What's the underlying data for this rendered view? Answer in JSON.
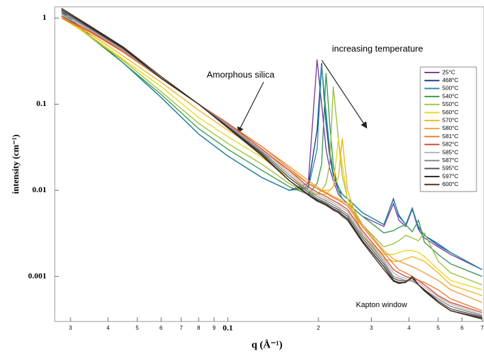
{
  "chart_data": {
    "type": "line",
    "y_label": "intensity (cm⁻¹)",
    "x_label": "q (Å⁻¹)",
    "annotations": [
      "increasing temperature",
      "Amorphous silica",
      "Kapton window"
    ],
    "log_x": true,
    "log_y": true,
    "xlim": [
      0.0266,
      0.71
    ],
    "ylim": [
      0.0003,
      1.35
    ],
    "xticks": [
      {
        "value": 0.03,
        "label": "3"
      },
      {
        "value": 0.04,
        "label": "4"
      },
      {
        "value": 0.05,
        "label": "5"
      },
      {
        "value": 0.06,
        "label": "6"
      },
      {
        "value": 0.07,
        "label": "7"
      },
      {
        "value": 0.08,
        "label": "8"
      },
      {
        "value": 0.09,
        "label": "9"
      },
      0.1,
      {
        "value": 0.2,
        "label": "2"
      },
      {
        "value": 0.3,
        "label": "3"
      },
      {
        "value": 0.4,
        "label": "4"
      },
      {
        "value": 0.5,
        "label": "5"
      },
      {
        "value": 0.6,
        "label": "6"
      },
      {
        "value": 0.7,
        "label": "7"
      }
    ],
    "yticks": [
      0.001,
      0.01,
      0.1,
      1
    ],
    "x": [
      0.028,
      0.035,
      0.045,
      0.06,
      0.08,
      0.1,
      0.13,
      0.16,
      0.185,
      0.198,
      0.205,
      0.212,
      0.218,
      0.224,
      0.233,
      0.24,
      0.25,
      0.28,
      0.33,
      0.355,
      0.37,
      0.39,
      0.41,
      0.43,
      0.45,
      0.5,
      0.55,
      0.7
    ],
    "series": [
      {
        "name": "25°C",
        "color": "#7b3fa0",
        "values": [
          1.2,
          0.62,
          0.3,
          0.12,
          0.045,
          0.025,
          0.014,
          0.01,
          0.012,
          0.33,
          0.1,
          0.03,
          0.018,
          0.013,
          0.009,
          0.008,
          0.007,
          0.005,
          0.0038,
          0.007,
          0.0045,
          0.0038,
          0.006,
          0.0035,
          0.0028,
          0.0022,
          0.0018,
          0.0012
        ]
      },
      {
        "name": "468°C",
        "color": "#1a3c8f",
        "values": [
          1.2,
          0.62,
          0.3,
          0.12,
          0.045,
          0.025,
          0.014,
          0.01,
          0.011,
          0.05,
          0.3,
          0.06,
          0.025,
          0.015,
          0.01,
          0.009,
          0.008,
          0.0055,
          0.004,
          0.008,
          0.005,
          0.004,
          0.0062,
          0.0037,
          0.003,
          0.0023,
          0.0019,
          0.0012
        ]
      },
      {
        "name": "500°C",
        "color": "#2a8fa8",
        "values": [
          1.15,
          0.6,
          0.3,
          0.12,
          0.045,
          0.025,
          0.014,
          0.01,
          0.0105,
          0.03,
          0.28,
          0.08,
          0.03,
          0.016,
          0.011,
          0.009,
          0.008,
          0.0055,
          0.004,
          0.0078,
          0.0052,
          0.004,
          0.006,
          0.0038,
          0.003,
          0.0024,
          0.0019,
          0.0012
        ]
      },
      {
        "name": "540°C",
        "color": "#3a9a50",
        "values": [
          1.1,
          0.6,
          0.3,
          0.13,
          0.052,
          0.03,
          0.017,
          0.011,
          0.009,
          0.012,
          0.02,
          0.23,
          0.06,
          0.02,
          0.01,
          0.008,
          0.007,
          0.005,
          0.0032,
          0.0034,
          0.0037,
          0.004,
          0.0033,
          0.0045,
          0.0025,
          0.0018,
          0.0014,
          0.001
        ]
      },
      {
        "name": "550°C",
        "color": "#9cc23a",
        "values": [
          1.05,
          0.6,
          0.32,
          0.14,
          0.06,
          0.035,
          0.02,
          0.012,
          0.009,
          0.009,
          0.01,
          0.012,
          0.02,
          0.16,
          0.04,
          0.015,
          0.008,
          0.004,
          0.0022,
          0.0024,
          0.0026,
          0.003,
          0.0028,
          0.0026,
          0.0032,
          0.0015,
          0.0011,
          0.0008
        ]
      },
      {
        "name": "560°C",
        "color": "#e8d820",
        "values": [
          1.0,
          0.62,
          0.33,
          0.16,
          0.07,
          0.042,
          0.024,
          0.014,
          0.01,
          0.009,
          0.009,
          0.009,
          0.01,
          0.011,
          0.04,
          0.02,
          0.008,
          0.003,
          0.0018,
          0.0018,
          0.0019,
          0.002,
          0.002,
          0.0019,
          0.0017,
          0.0012,
          0.0009,
          0.0007
        ]
      },
      {
        "name": "570°C",
        "color": "#f2b41e",
        "values": [
          1.0,
          0.65,
          0.36,
          0.18,
          0.085,
          0.05,
          0.028,
          0.017,
          0.012,
          0.011,
          0.01,
          0.01,
          0.01,
          0.011,
          0.014,
          0.04,
          0.01,
          0.003,
          0.0016,
          0.0015,
          0.0015,
          0.0016,
          0.0017,
          0.0016,
          0.0015,
          0.0011,
          0.0008,
          0.0006
        ]
      },
      {
        "name": "580°C",
        "color": "#f0a040",
        "values": [
          1.0,
          0.68,
          0.4,
          0.2,
          0.1,
          0.06,
          0.032,
          0.019,
          0.013,
          0.011,
          0.01,
          0.0095,
          0.009,
          0.0085,
          0.008,
          0.0075,
          0.007,
          0.004,
          0.002,
          0.0016,
          0.0015,
          0.0014,
          0.0013,
          0.0012,
          0.0011,
          0.0009,
          0.0007,
          0.0005
        ]
      },
      {
        "name": "581°C",
        "color": "#e87a30",
        "values": [
          1.0,
          0.68,
          0.4,
          0.2,
          0.1,
          0.06,
          0.032,
          0.018,
          0.012,
          0.0105,
          0.0098,
          0.0092,
          0.0087,
          0.0082,
          0.0077,
          0.0072,
          0.0066,
          0.0038,
          0.0019,
          0.0014,
          0.0012,
          0.0011,
          0.001,
          0.0009,
          0.00085,
          0.0007,
          0.00055,
          0.0004
        ]
      },
      {
        "name": "582°C",
        "color": "#d94a3a",
        "values": [
          1.05,
          0.7,
          0.41,
          0.2,
          0.1,
          0.06,
          0.03,
          0.017,
          0.011,
          0.0095,
          0.009,
          0.0085,
          0.008,
          0.0076,
          0.0071,
          0.0066,
          0.006,
          0.0034,
          0.0017,
          0.0012,
          0.0011,
          0.001,
          0.00095,
          0.0009,
          0.0008,
          0.0006,
          0.0005,
          0.00038
        ]
      },
      {
        "name": "585°C",
        "color": "#b8b8b8",
        "values": [
          1.1,
          0.72,
          0.42,
          0.2,
          0.1,
          0.058,
          0.029,
          0.016,
          0.0105,
          0.009,
          0.0085,
          0.008,
          0.0076,
          0.0072,
          0.0067,
          0.0062,
          0.0057,
          0.0032,
          0.0016,
          0.0011,
          0.001,
          0.00095,
          0.0009,
          0.00085,
          0.00075,
          0.00058,
          0.00048,
          0.00036
        ]
      },
      {
        "name": "587°C",
        "color": "#888888",
        "values": [
          1.15,
          0.74,
          0.43,
          0.2,
          0.1,
          0.057,
          0.028,
          0.015,
          0.01,
          0.0085,
          0.008,
          0.0076,
          0.0072,
          0.0068,
          0.0063,
          0.0058,
          0.0053,
          0.003,
          0.0015,
          0.001,
          0.00095,
          0.0009,
          0.00088,
          0.0008,
          0.0007,
          0.00055,
          0.00045,
          0.00035
        ]
      },
      {
        "name": "595°C",
        "color": "#555555",
        "values": [
          1.2,
          0.76,
          0.44,
          0.2,
          0.1,
          0.055,
          0.027,
          0.014,
          0.0095,
          0.008,
          0.0076,
          0.0072,
          0.0068,
          0.0064,
          0.006,
          0.0055,
          0.005,
          0.0028,
          0.0014,
          0.00095,
          0.0009,
          0.00088,
          0.00095,
          0.0008,
          0.0007,
          0.00052,
          0.00042,
          0.00034
        ]
      },
      {
        "name": "597°C",
        "color": "#222222",
        "values": [
          1.25,
          0.78,
          0.45,
          0.2,
          0.1,
          0.054,
          0.026,
          0.013,
          0.009,
          0.0077,
          0.0073,
          0.0069,
          0.0065,
          0.0061,
          0.0057,
          0.0052,
          0.0047,
          0.0026,
          0.0013,
          0.0009,
          0.00085,
          0.00085,
          0.001,
          0.0008,
          0.0007,
          0.0005,
          0.0004,
          0.00033
        ]
      },
      {
        "name": "600°C",
        "color": "#4a3020",
        "values": [
          1.3,
          0.8,
          0.46,
          0.21,
          0.1,
          0.053,
          0.025,
          0.013,
          0.0088,
          0.0075,
          0.0071,
          0.0067,
          0.0063,
          0.0059,
          0.0055,
          0.005,
          0.0045,
          0.0025,
          0.0012,
          0.00088,
          0.00083,
          0.00085,
          0.001,
          0.0008,
          0.00068,
          0.0005,
          0.0004,
          0.00032
        ]
      }
    ],
    "legend": "upper right"
  }
}
